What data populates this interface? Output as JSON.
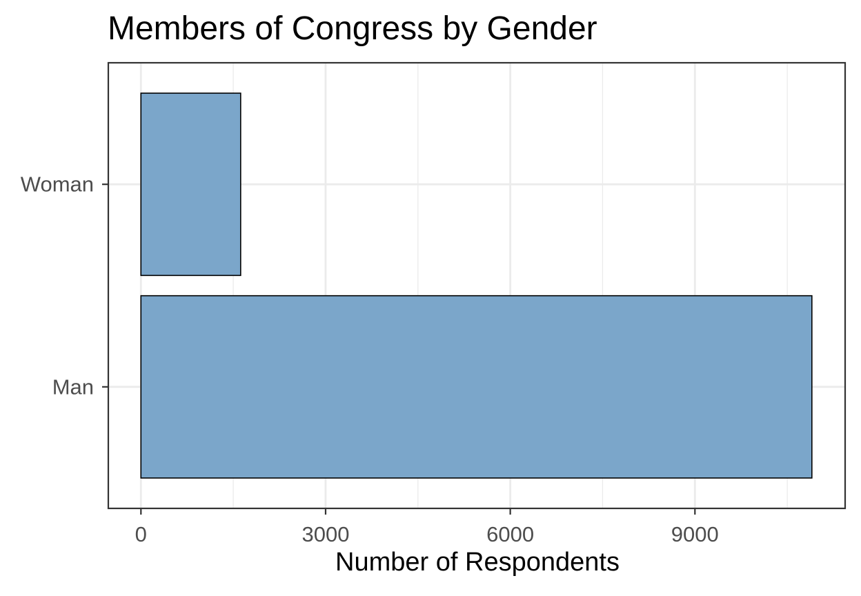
{
  "chart_data": {
    "type": "bar",
    "orientation": "horizontal",
    "title": "Members of Congress by Gender",
    "xlabel": "Number of Respondents",
    "ylabel": "",
    "categories": [
      "Man",
      "Woman"
    ],
    "values": [
      10900,
      1620
    ],
    "xlim": [
      -530,
      11440
    ],
    "x_ticks": [
      0,
      3000,
      6000,
      9000
    ],
    "x_minor_ticks": [
      1500,
      4500,
      7500,
      10500
    ],
    "grid": true,
    "legend": "none",
    "bar_fill": "#7ba6ca",
    "bar_stroke": "#000000",
    "panel_border": "#333333",
    "grid_color": "#ebebeb",
    "tick_label_color": "#4d4d4d"
  }
}
